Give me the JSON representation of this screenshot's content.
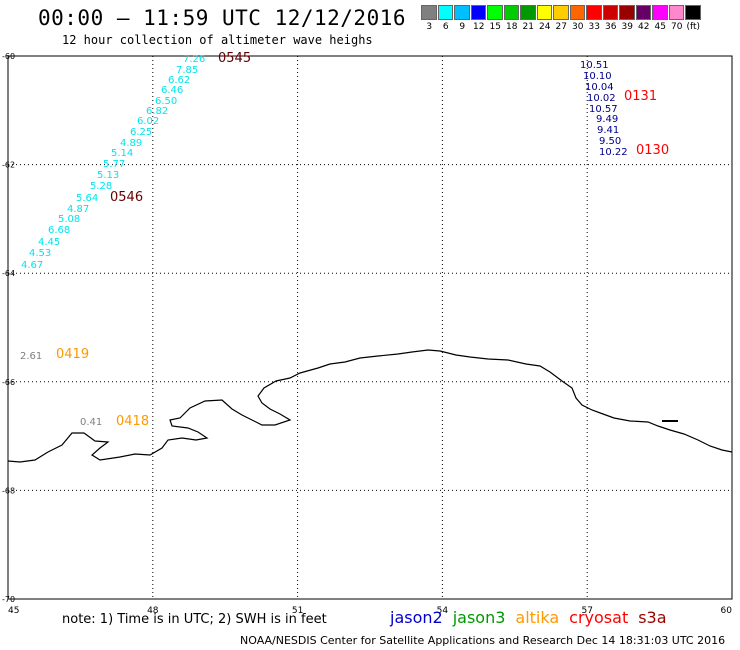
{
  "header": {
    "title": "00:00 – 11:59 UTC 12/12/2016",
    "subtitle": "12 hour collection of altimeter wave heighs"
  },
  "colorbar": {
    "colors": [
      "#808080",
      "#00ffff",
      "#00bfff",
      "#0000ff",
      "#00ff00",
      "#00cc00",
      "#009900",
      "#ffff00",
      "#ffcc00",
      "#ff6600",
      "#ff0000",
      "#cc0000",
      "#990000",
      "#660066",
      "#ff00ff",
      "#ff88cc",
      "#000000"
    ],
    "labels": [
      "3",
      "6",
      "9",
      "12",
      "15",
      "18",
      "21",
      "24",
      "27",
      "30",
      "33",
      "36",
      "39",
      "42",
      "45",
      "70",
      "(ft)"
    ]
  },
  "map": {
    "lon_range": [
      45,
      60
    ],
    "lat_range": [
      -70,
      -60
    ],
    "x_ticks": [
      "45",
      "48",
      "51",
      "54",
      "57",
      "60"
    ],
    "y_ticks": [
      "-60",
      "-62",
      "-64",
      "-66",
      "-68",
      "-70"
    ]
  },
  "tracks": {
    "jason2": {
      "color": "#00008b",
      "values": [
        "10.51",
        "10.10",
        "10.04",
        "10.02",
        "10.57",
        "9.49",
        "9.41",
        "9.50",
        "10.22"
      ]
    },
    "s3a_cyan": {
      "color": "#00e5ee",
      "values": [
        "7.26",
        "7.85",
        "6.62",
        "6.46",
        "6.50",
        "6.82",
        "6.02",
        "6.25",
        "4.89",
        "5.14",
        "5.77",
        "5.13",
        "5.28",
        "5.64",
        "4.87",
        "5.08",
        "6.68",
        "4.45",
        "4.53",
        "4.67"
      ]
    },
    "gray": {
      "color": "#808080",
      "values": [
        "2.61",
        "0.41"
      ]
    }
  },
  "time_labels": [
    {
      "text": "0545",
      "color": "#660000"
    },
    {
      "text": "0546",
      "color": "#660000"
    },
    {
      "text": "0131",
      "color": "#ff0000"
    },
    {
      "text": "0130",
      "color": "#ff0000"
    },
    {
      "text": "0419",
      "color": "#ff9900"
    },
    {
      "text": "0418",
      "color": "#ff9900"
    }
  ],
  "legend": [
    {
      "name": "jason2",
      "color": "#0000cc"
    },
    {
      "name": "jason3",
      "color": "#009900"
    },
    {
      "name": "altika",
      "color": "#ff9900"
    },
    {
      "name": "cryosat",
      "color": "#ff0000"
    },
    {
      "name": "s3a",
      "color": "#990000"
    }
  ],
  "note": "note: 1) Time is in UTC; 2) SWH is in feet",
  "footer": "NOAA/NESDIS Center for Satellite Applications and Research    Dec 14 18:31:03 UTC 2016"
}
